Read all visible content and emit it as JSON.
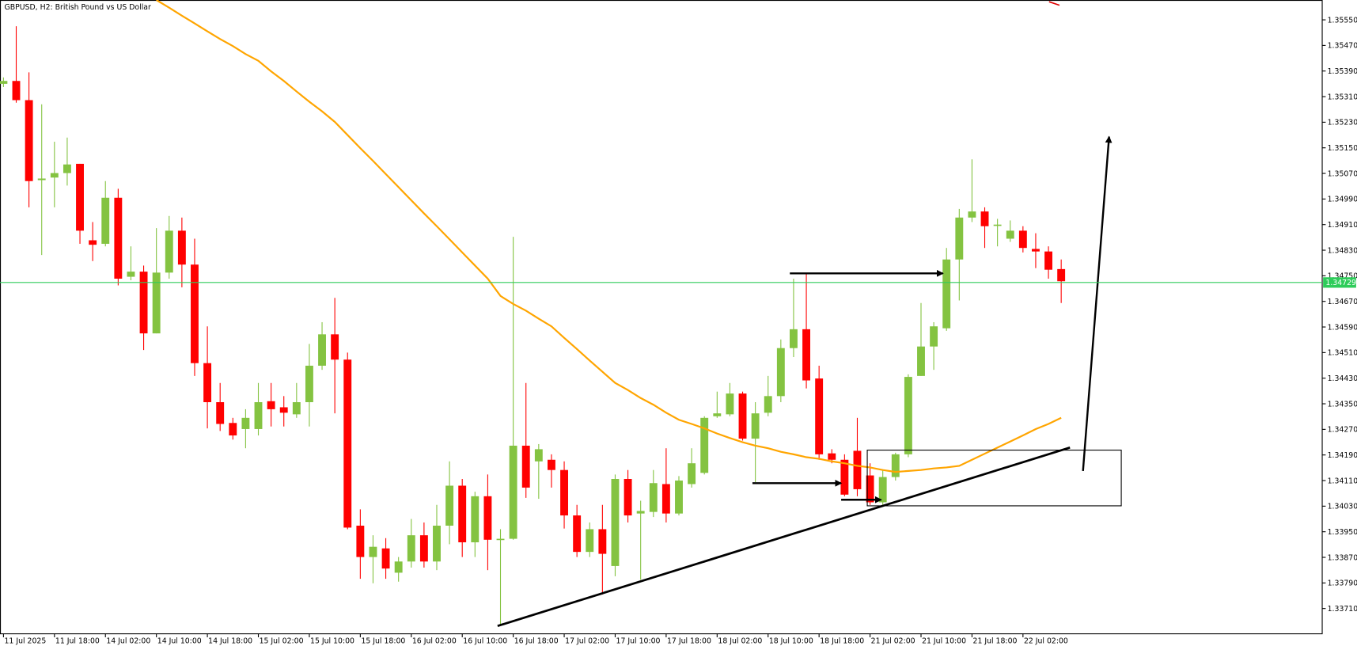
{
  "chart_data": {
    "type": "candlestick",
    "title": "GBPUSD, H2:  British Pound vs US Dollar",
    "categories": [
      "11 Jul 2025",
      null,
      null,
      null,
      "11 Jul 18:00",
      null,
      null,
      null,
      "14 Jul 02:00",
      null,
      null,
      null,
      "14 Jul 10:00",
      null,
      null,
      null,
      "14 Jul 18:00",
      null,
      null,
      null,
      "15 Jul 02:00",
      null,
      null,
      null,
      "15 Jul 10:00",
      null,
      null,
      null,
      "15 Jul 18:00",
      null,
      null,
      null,
      "16 Jul 02:00",
      null,
      null,
      null,
      "16 Jul 10:00",
      null,
      null,
      null,
      "16 Jul 18:00",
      null,
      null,
      null,
      "17 Jul 02:00",
      null,
      null,
      null,
      "17 Jul 10:00",
      null,
      null,
      null,
      "17 Jul 18:00",
      null,
      null,
      null,
      "18 Jul 02:00",
      null,
      null,
      null,
      "18 Jul 10:00",
      null,
      null,
      null,
      "18 Jul 18:00",
      null,
      null,
      null,
      "21 Jul 02:00",
      null,
      null,
      null,
      "21 Jul 10:00",
      null,
      null,
      null,
      "21 Jul 18:00",
      null,
      null,
      null,
      "22 Jul 02:00",
      null,
      null,
      null
    ],
    "open": [
      1.3535,
      1.35359,
      1.35299,
      1.35049,
      1.35057,
      1.35071,
      1.351,
      1.34861,
      1.3485,
      1.34994,
      1.34747,
      1.34763,
      1.3457,
      1.3476,
      1.34891,
      1.34785,
      1.34477,
      1.34355,
      1.3429,
      1.34271,
      1.34271,
      1.34358,
      1.34339,
      1.34317,
      1.34355,
      1.34469,
      1.34567,
      1.34488,
      1.33969,
      1.33871,
      1.33898,
      1.33822,
      1.33857,
      1.33939,
      1.33857,
      1.33969,
      1.34094,
      1.33917,
      1.34061,
      1.33925,
      1.33928,
      1.34219,
      1.3417,
      1.34175,
      1.34143,
      1.34001,
      1.33887,
      1.33958,
      1.33843,
      1.34115,
      1.34007,
      1.34012,
      1.34099,
      1.34007,
      1.34099,
      1.34134,
      1.34311,
      1.34317,
      1.34382,
      1.34241,
      1.34322,
      1.34374,
      1.34524,
      1.34583,
      1.34429,
      1.34195,
      1.34175,
      1.34203,
      1.34126,
      1.34042,
      1.34121,
      1.34192,
      1.34437,
      1.34529,
      1.34586,
      1.34801,
      1.34932,
      1.34951,
      1.34907,
      1.34866,
      1.34891,
      1.34834,
      1.34826,
      1.34771
    ],
    "high": [
      1.3537,
      1.3553,
      1.35386,
      1.35286,
      1.35169,
      1.35182,
      1.351,
      1.34918,
      1.35046,
      1.35022,
      1.34842,
      1.34782,
      1.34899,
      1.34937,
      1.34932,
      1.34866,
      1.34592,
      1.34415,
      1.34306,
      1.34333,
      1.34415,
      1.34415,
      1.34374,
      1.34415,
      1.34537,
      1.34605,
      1.34681,
      1.3451,
      1.3402,
      1.33939,
      1.3393,
      1.33871,
      1.3399,
      1.33979,
      1.34034,
      1.3417,
      1.34115,
      1.34075,
      1.34129,
      1.33958,
      1.34872,
      1.34415,
      1.34224,
      1.34192,
      1.3417,
      1.34034,
      1.33979,
      1.34034,
      1.34129,
      1.34143,
      1.34047,
      1.34143,
      1.34211,
      1.34124,
      1.34211,
      1.34311,
      1.34388,
      1.34415,
      1.34388,
      1.34355,
      1.34437,
      1.34551,
      1.34741,
      1.34758,
      1.34469,
      1.34208,
      1.34192,
      1.34306,
      1.34164,
      1.34143,
      1.34197,
      1.34442,
      1.34665,
      1.34605,
      1.34837,
      1.34959,
      1.35114,
      1.34964,
      1.34928,
      1.34923,
      1.34905,
      1.34883,
      1.34842,
      1.34801
    ],
    "low": [
      1.3534,
      1.35291,
      1.34964,
      1.34815,
      1.34964,
      1.35032,
      1.3485,
      1.34796,
      1.34842,
      1.3472,
      1.34736,
      1.34518,
      1.3457,
      1.34741,
      1.34714,
      1.34437,
      1.34273,
      1.34265,
      1.34238,
      1.34211,
      1.34251,
      1.34279,
      1.34279,
      1.34306,
      1.34279,
      1.34456,
      1.3432,
      1.33958,
      1.33803,
      1.33789,
      1.33803,
      1.33794,
      1.33838,
      1.33838,
      1.3383,
      1.33911,
      1.33871,
      1.33871,
      1.3383,
      1.33658,
      1.33925,
      1.34056,
      1.34053,
      1.34088,
      1.3396,
      1.33871,
      1.33871,
      1.33754,
      1.33811,
      1.33979,
      1.338,
      1.33996,
      1.33979,
      1.34001,
      1.34088,
      1.34129,
      1.34306,
      1.34311,
      1.34235,
      1.34105,
      1.34311,
      1.34355,
      1.34496,
      1.34398,
      1.34175,
      1.34164,
      1.34061,
      1.34061,
      1.34034,
      1.34034,
      1.3411,
      1.34183,
      1.34437,
      1.34456,
      1.34578,
      1.34673,
      1.34918,
      1.34837,
      1.34842,
      1.34856,
      1.34823,
      1.34774,
      1.34741,
      1.34665
    ],
    "close": [
      1.35359,
      1.35299,
      1.35046,
      1.35054,
      1.35071,
      1.35098,
      1.34891,
      1.34847,
      1.34994,
      1.34741,
      1.34763,
      1.3457,
      1.3476,
      1.34891,
      1.34785,
      1.34477,
      1.34355,
      1.34287,
      1.34251,
      1.34306,
      1.34355,
      1.34333,
      1.34322,
      1.34355,
      1.34469,
      1.34567,
      1.34488,
      1.33963,
      1.33871,
      1.33903,
      1.33835,
      1.33857,
      1.33939,
      1.33857,
      1.33969,
      1.34094,
      1.33917,
      1.34061,
      1.33925,
      1.33928,
      1.34219,
      1.34088,
      1.34208,
      1.34143,
      1.34001,
      1.33887,
      1.33958,
      1.33881,
      1.34115,
      1.34001,
      1.34015,
      1.34102,
      1.34007,
      1.3411,
      1.34164,
      1.34306,
      1.3432,
      1.34382,
      1.34241,
      1.3432,
      1.34374,
      1.34524,
      1.34583,
      1.34423,
      1.34192,
      1.34175,
      1.34066,
      1.34083,
      1.34042,
      1.34121,
      1.34192,
      1.34434,
      1.34529,
      1.34592,
      1.34801,
      1.34932,
      1.34951,
      1.34905,
      1.3491,
      1.34891,
      1.34837,
      1.34826,
      1.34769,
      1.34733
    ],
    "up_color": "#84c341",
    "down_color": "#ff0000",
    "moving_average": {
      "color": "#ffa500",
      "values": [
        null,
        null,
        null,
        null,
        null,
        null,
        null,
        null,
        null,
        null,
        null,
        null,
        1.35612,
        1.35588,
        1.35563,
        1.35539,
        1.35514,
        1.3549,
        1.35468,
        1.35443,
        1.35422,
        1.35389,
        1.35359,
        1.35326,
        1.35294,
        1.35264,
        1.35231,
        1.3519,
        1.35149,
        1.35109,
        1.35068,
        1.35027,
        1.34986,
        1.34945,
        1.34905,
        1.34864,
        1.34823,
        1.34782,
        1.34741,
        1.34687,
        1.34662,
        1.34641,
        1.34616,
        1.34592,
        1.34556,
        1.34521,
        1.34485,
        1.3445,
        1.34415,
        1.34393,
        1.34368,
        1.34347,
        1.34322,
        1.343,
        1.34287,
        1.34273,
        1.34257,
        1.34243,
        1.3423,
        1.34219,
        1.34211,
        1.342,
        1.34192,
        1.34183,
        1.34178,
        1.3417,
        1.34164,
        1.34156,
        1.34151,
        1.34143,
        1.34137,
        1.3414,
        1.34143,
        1.34148,
        1.34151,
        1.34156,
        1.34175,
        1.34194,
        1.34213,
        1.34232,
        1.34251,
        1.34271,
        1.34287,
        1.34306
      ]
    },
    "current_price": {
      "value": 1.34729,
      "label": "1.34729",
      "color": "#2ecc5a"
    },
    "ylim": [
      1.33631,
      1.35612
    ],
    "yticks": [
      {
        "value": 1.3371,
        "label": "1.33710"
      },
      {
        "value": 1.3379,
        "label": "1.33790"
      },
      {
        "value": 1.3387,
        "label": "1.33870"
      },
      {
        "value": 1.3395,
        "label": "1.33950"
      },
      {
        "value": 1.3403,
        "label": "1.34030"
      },
      {
        "value": 1.3411,
        "label": "1.34110"
      },
      {
        "value": 1.3419,
        "label": "1.34190"
      },
      {
        "value": 1.3427,
        "label": "1.34270"
      },
      {
        "value": 1.3435,
        "label": "1.34350"
      },
      {
        "value": 1.3443,
        "label": "1.34430"
      },
      {
        "value": 1.3451,
        "label": "1.34510"
      },
      {
        "value": 1.3459,
        "label": "1.34590"
      },
      {
        "value": 1.3467,
        "label": "1.34670"
      },
      {
        "value": 1.3475,
        "label": "1.34750"
      },
      {
        "value": 1.3483,
        "label": "1.34830"
      },
      {
        "value": 1.3491,
        "label": "1.34910"
      },
      {
        "value": 1.3499,
        "label": "1.34990"
      },
      {
        "value": 1.3507,
        "label": "1.35070"
      },
      {
        "value": 1.3515,
        "label": "1.35150"
      },
      {
        "value": 1.3523,
        "label": "1.35230"
      },
      {
        "value": 1.3531,
        "label": "1.35310"
      },
      {
        "value": 1.3539,
        "label": "1.35390"
      },
      {
        "value": 1.3547,
        "label": "1.35470"
      },
      {
        "value": 1.3555,
        "label": "1.35550"
      }
    ],
    "grid": false
  }
}
